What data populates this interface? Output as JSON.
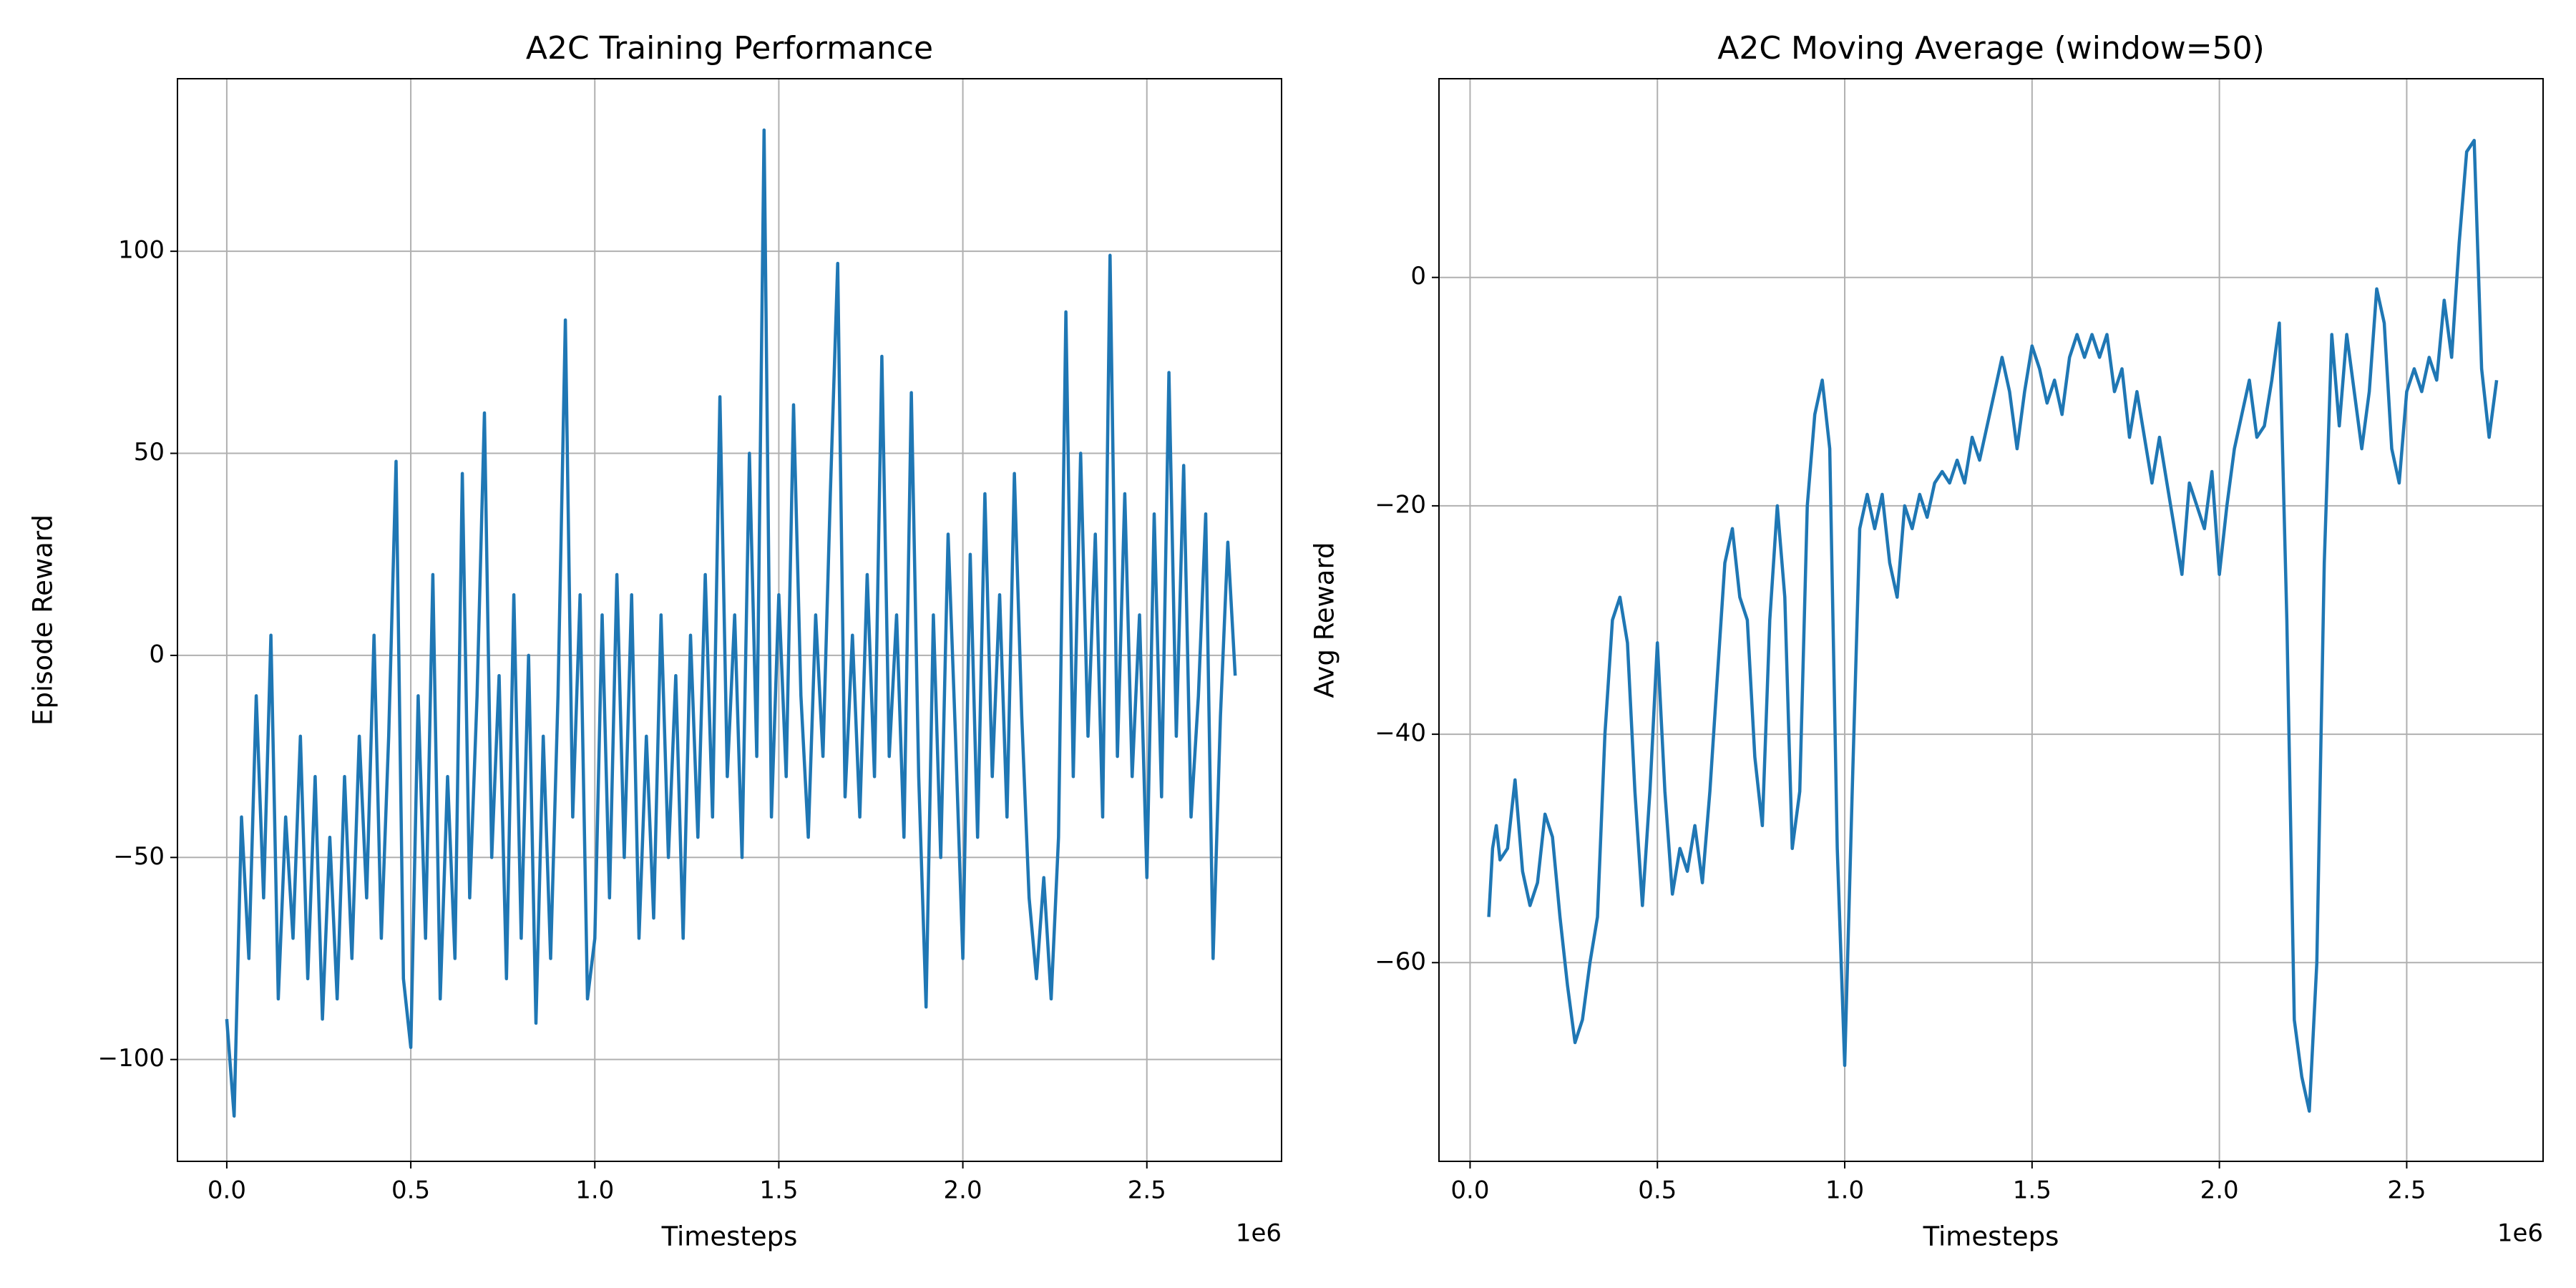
{
  "chart_data": [
    {
      "type": "line",
      "title": "A2C Training Performance",
      "xlabel": "Timesteps",
      "ylabel": "Episode Reward",
      "x_offset": "1e6",
      "color": "#1f77b4",
      "grid": true,
      "xlim": [
        -0.134,
        2.866
      ],
      "ylim": [
        -125.2,
        142.7
      ],
      "xticks": [
        {
          "value": 0,
          "label": "0.0"
        },
        0.5,
        {
          "value": 1,
          "label": "1.0"
        },
        1.5,
        {
          "value": 2,
          "label": "2.0"
        },
        2.5
      ],
      "yticks": [
        {
          "value": -100,
          "label": "−100"
        },
        {
          "value": -50,
          "label": "−50"
        },
        0,
        50,
        100
      ],
      "x": [
        0,
        0.02,
        0.04,
        0.06,
        0.08,
        0.1,
        0.12,
        0.14,
        0.16,
        0.18,
        0.2,
        0.22,
        0.24,
        0.26,
        0.28,
        0.3,
        0.32,
        0.34,
        0.36,
        0.38,
        0.4,
        0.42,
        0.44,
        0.46,
        0.48,
        0.5,
        0.52,
        0.54,
        0.56,
        0.58,
        0.6,
        0.62,
        0.64,
        0.66,
        0.68,
        0.7,
        0.72,
        0.74,
        0.76,
        0.78,
        0.8,
        0.82,
        0.84,
        0.86,
        0.88,
        0.9,
        0.92,
        0.94,
        0.96,
        0.98,
        1,
        1.02,
        1.04,
        1.06,
        1.08,
        1.1,
        1.12,
        1.14,
        1.16,
        1.18,
        1.2,
        1.22,
        1.24,
        1.26,
        1.28,
        1.3,
        1.32,
        1.34,
        1.36,
        1.38,
        1.4,
        1.42,
        1.44,
        1.46,
        1.48,
        1.5,
        1.52,
        1.54,
        1.56,
        1.58,
        1.6,
        1.62,
        1.64,
        1.66,
        1.68,
        1.7,
        1.72,
        1.74,
        1.76,
        1.78,
        1.8,
        1.82,
        1.84,
        1.86,
        1.88,
        1.9,
        1.92,
        1.94,
        1.96,
        1.98,
        2,
        2.02,
        2.04,
        2.06,
        2.08,
        2.1,
        2.12,
        2.14,
        2.16,
        2.18,
        2.2,
        2.22,
        2.24,
        2.26,
        2.28,
        2.3,
        2.32,
        2.34,
        2.36,
        2.38,
        2.4,
        2.42,
        2.44,
        2.46,
        2.48,
        2.5,
        2.52,
        2.54,
        2.56,
        2.58,
        2.6,
        2.62,
        2.64,
        2.66,
        2.68,
        2.7,
        2.72,
        2.74
      ],
      "values": [
        -90,
        -114,
        -40,
        -75,
        -10,
        -60,
        5,
        -85,
        -40,
        -70,
        -20,
        -80,
        -30,
        -90,
        -45,
        -85,
        -30,
        -75,
        -20,
        -60,
        5,
        -70,
        -20,
        48,
        -80,
        -97,
        -10,
        -70,
        20,
        -85,
        -30,
        -75,
        45,
        -60,
        -10,
        60,
        -50,
        -5,
        -80,
        15,
        -70,
        0,
        -91,
        -20,
        -75,
        -10,
        83,
        -40,
        15,
        -85,
        -70,
        10,
        -60,
        20,
        -50,
        15,
        -70,
        -20,
        -65,
        10,
        -50,
        -5,
        -70,
        5,
        -45,
        20,
        -40,
        64,
        -30,
        10,
        -50,
        50,
        -25,
        130,
        -40,
        15,
        -30,
        62,
        -10,
        -45,
        10,
        -25,
        40,
        97,
        -35,
        5,
        -40,
        20,
        -30,
        74,
        -25,
        10,
        -45,
        65,
        -30,
        -87,
        10,
        -50,
        30,
        -20,
        -75,
        25,
        -45,
        40,
        -30,
        15,
        -40,
        45,
        -15,
        -60,
        -80,
        -55,
        -85,
        -45,
        85,
        -30,
        50,
        -20,
        30,
        -40,
        99,
        -25,
        40,
        -30,
        10,
        -55,
        35,
        -35,
        70,
        -20,
        47,
        -40,
        -10,
        35,
        -75,
        -15,
        28,
        -5
      ]
    },
    {
      "type": "line",
      "title": "A2C Moving Average (window=50)",
      "xlabel": "Timesteps",
      "ylabel": "Avg Reward",
      "x_offset": "1e6",
      "color": "#1f77b4",
      "grid": true,
      "xlim": [
        -0.083,
        2.864
      ],
      "ylim": [
        -77.4,
        17.4
      ],
      "xticks": [
        {
          "value": 0,
          "label": "0.0"
        },
        0.5,
        {
          "value": 1,
          "label": "1.0"
        },
        1.5,
        {
          "value": 2,
          "label": "2.0"
        },
        2.5
      ],
      "yticks": [
        {
          "value": -60,
          "label": "−60"
        },
        {
          "value": -40,
          "label": "−40"
        },
        {
          "value": -20,
          "label": "−20"
        },
        0
      ],
      "x": [
        0.05,
        0.06,
        0.07,
        0.08,
        0.1,
        0.12,
        0.14,
        0.16,
        0.18,
        0.2,
        0.22,
        0.24,
        0.26,
        0.28,
        0.3,
        0.32,
        0.34,
        0.36,
        0.38,
        0.4,
        0.42,
        0.44,
        0.46,
        0.48,
        0.5,
        0.52,
        0.54,
        0.56,
        0.58,
        0.6,
        0.62,
        0.64,
        0.66,
        0.68,
        0.7,
        0.72,
        0.74,
        0.76,
        0.78,
        0.8,
        0.82,
        0.84,
        0.86,
        0.88,
        0.9,
        0.92,
        0.94,
        0.96,
        0.98,
        1,
        1.02,
        1.04,
        1.06,
        1.08,
        1.1,
        1.12,
        1.14,
        1.16,
        1.18,
        1.2,
        1.22,
        1.24,
        1.26,
        1.28,
        1.3,
        1.32,
        1.34,
        1.36,
        1.38,
        1.4,
        1.42,
        1.44,
        1.46,
        1.48,
        1.5,
        1.52,
        1.54,
        1.56,
        1.58,
        1.6,
        1.62,
        1.64,
        1.66,
        1.68,
        1.7,
        1.72,
        1.74,
        1.76,
        1.78,
        1.8,
        1.82,
        1.84,
        1.86,
        1.88,
        1.9,
        1.92,
        1.94,
        1.96,
        1.98,
        2,
        2.02,
        2.04,
        2.06,
        2.08,
        2.1,
        2.12,
        2.14,
        2.16,
        2.18,
        2.2,
        2.22,
        2.24,
        2.26,
        2.28,
        2.3,
        2.32,
        2.34,
        2.36,
        2.38,
        2.4,
        2.42,
        2.44,
        2.46,
        2.48,
        2.5,
        2.52,
        2.54,
        2.56,
        2.58,
        2.6,
        2.62,
        2.64,
        2.66,
        2.68,
        2.7,
        2.72,
        2.74
      ],
      "values": [
        -56,
        -50,
        -48,
        -51,
        -50,
        -44,
        -52,
        -55,
        -53,
        -47,
        -49,
        -56,
        -62,
        -67,
        -65,
        -60,
        -56,
        -40,
        -30,
        -28,
        -32,
        -45,
        -55,
        -45,
        -32,
        -45,
        -54,
        -50,
        -52,
        -48,
        -53,
        -45,
        -35,
        -25,
        -22,
        -28,
        -30,
        -42,
        -48,
        -30,
        -20,
        -28,
        -50,
        -45,
        -20,
        -12,
        -9,
        -15,
        -50,
        -69,
        -45,
        -22,
        -19,
        -22,
        -19,
        -25,
        -28,
        -20,
        -22,
        -19,
        -21,
        -18,
        -17,
        -18,
        -16,
        -18,
        -14,
        -16,
        -13,
        -10,
        -7,
        -10,
        -15,
        -10,
        -6,
        -8,
        -11,
        -9,
        -12,
        -7,
        -5,
        -7,
        -5,
        -7,
        -5,
        -10,
        -8,
        -14,
        -10,
        -14,
        -18,
        -14,
        -18,
        -22,
        -26,
        -18,
        -20,
        -22,
        -17,
        -26,
        -20,
        -15,
        -12,
        -9,
        -14,
        -13,
        -9,
        -4,
        -30,
        -65,
        -70,
        -73,
        -60,
        -25,
        -5,
        -13,
        -5,
        -10,
        -15,
        -10,
        -1,
        -4,
        -15,
        -18,
        -10,
        -8,
        -10,
        -7,
        -9,
        -2,
        -7,
        3,
        11,
        12,
        -8,
        -14,
        -9
      ]
    }
  ]
}
